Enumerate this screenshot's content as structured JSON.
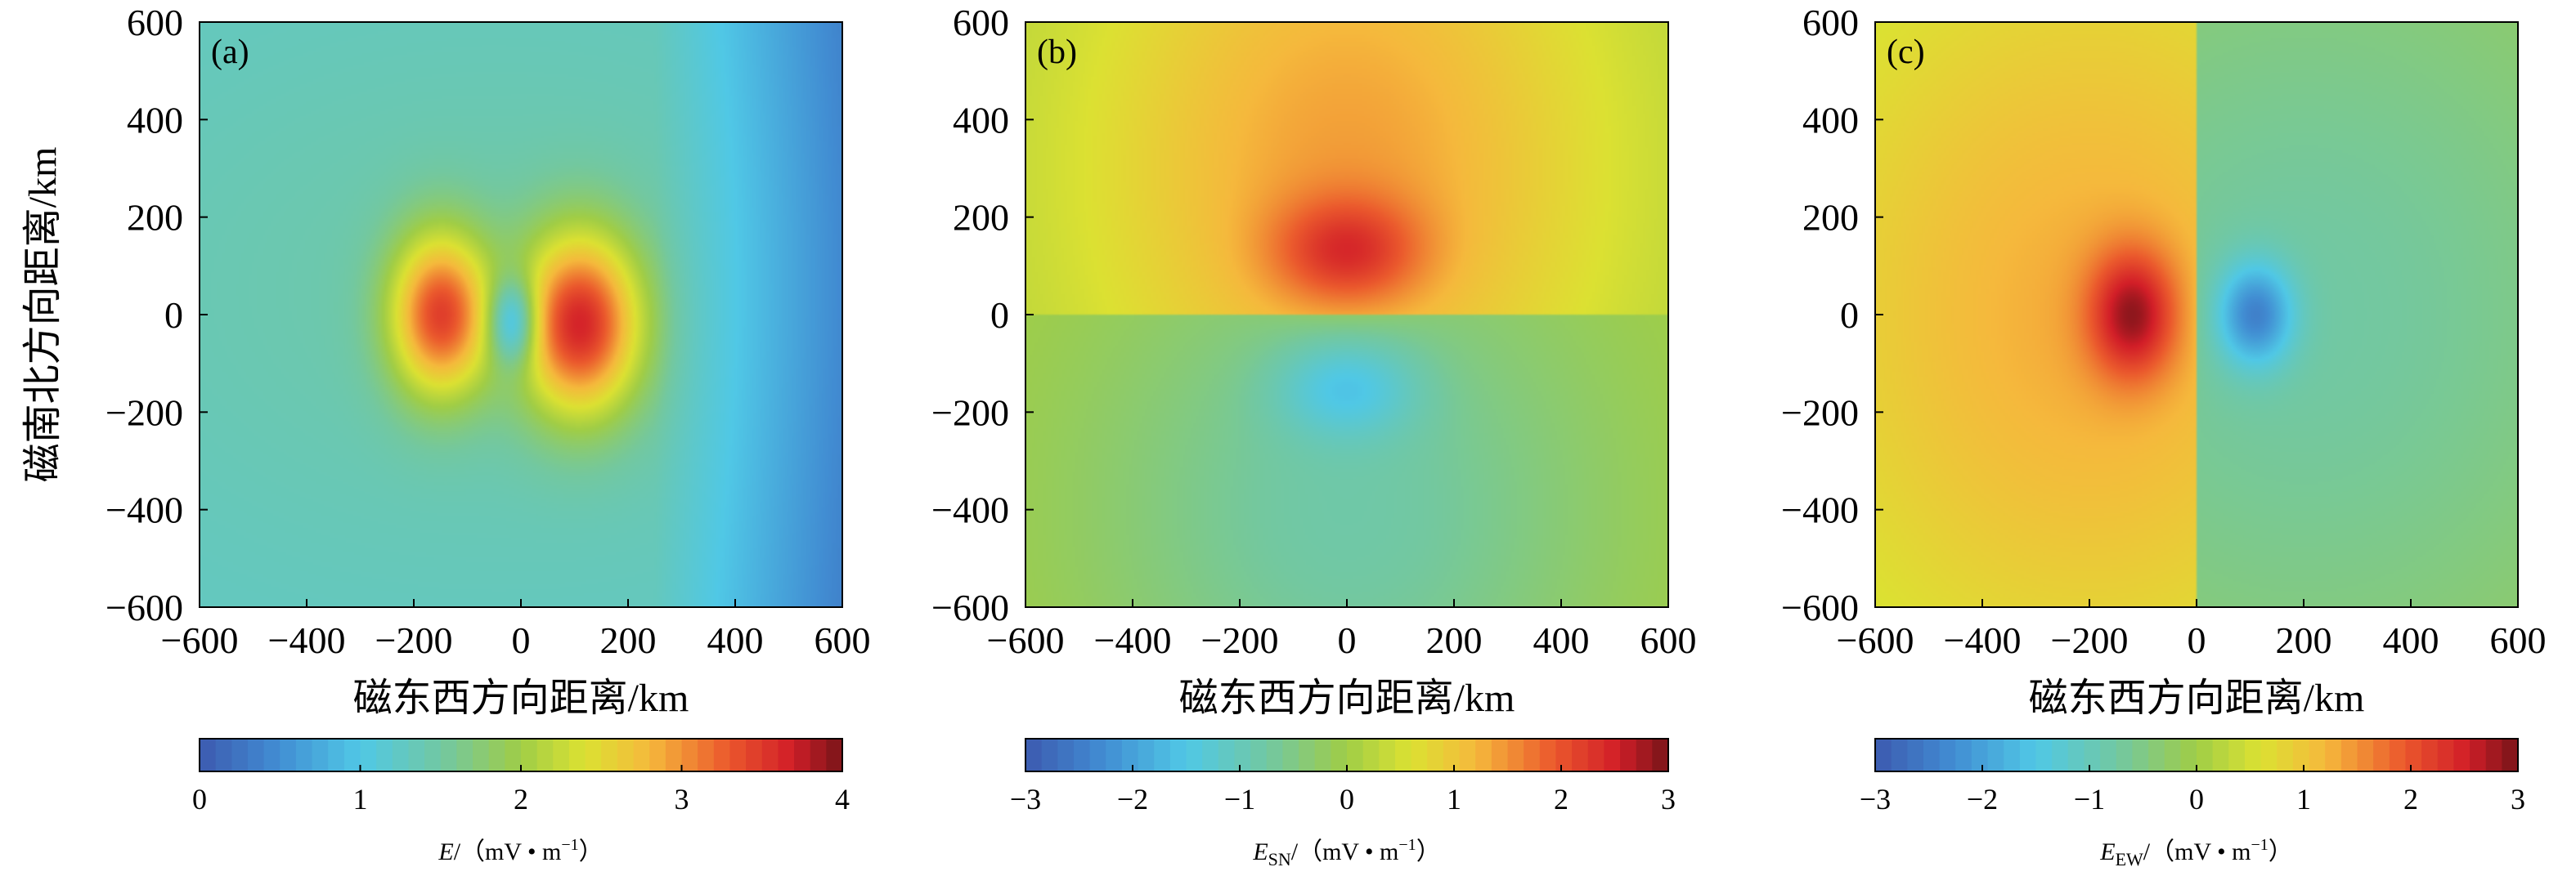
{
  "chart_data": [
    {
      "type": "heatmap",
      "panel_label": "(a)",
      "xlabel": "磁东西方向距离/km",
      "ylabel": "磁南北方向距离/km",
      "xlim": [
        -600,
        600
      ],
      "ylim": [
        -600,
        600
      ],
      "xticks": [
        "−600",
        "−400",
        "−200",
        "0",
        "200",
        "400",
        "600"
      ],
      "yticks": [
        "600",
        "400",
        "200",
        "0",
        "−200",
        "−400",
        "−600"
      ],
      "field": "magnitude",
      "features": [
        {
          "x": -150,
          "y": 0,
          "value": 3.3
        },
        {
          "x": 110,
          "y": -20,
          "value": 3.6
        },
        {
          "x": -20,
          "y": -20,
          "value": 0.6
        }
      ],
      "colorbar": {
        "range": [
          0,
          4
        ],
        "ticks": [
          "0",
          "1",
          "2",
          "3",
          "4"
        ],
        "label_main": "E",
        "label_sub": "",
        "label_unit_pre": "/（mV • m",
        "label_sup": "−1",
        "label_unit_post": "）"
      }
    },
    {
      "type": "heatmap",
      "panel_label": "(b)",
      "xlabel": "磁东西方向距离/km",
      "ylabel": "",
      "xlim": [
        -600,
        600
      ],
      "ylim": [
        -600,
        600
      ],
      "xticks": [
        "−600",
        "−400",
        "−200",
        "0",
        "200",
        "400",
        "600"
      ],
      "yticks": [
        "600",
        "400",
        "200",
        "0",
        "−200",
        "−400",
        "−600"
      ],
      "field": "sn",
      "features": [
        {
          "x": 0,
          "y": 130,
          "value": 2.2
        },
        {
          "x": 0,
          "y": -140,
          "value": -1.3
        }
      ],
      "colorbar": {
        "range": [
          -3,
          3
        ],
        "ticks": [
          "−3",
          "−2",
          "−1",
          "0",
          "1",
          "2",
          "3"
        ],
        "label_main": "E",
        "label_sub": "SN",
        "label_unit_pre": "/（mV • m",
        "label_sup": "−1",
        "label_unit_post": "）"
      }
    },
    {
      "type": "heatmap",
      "panel_label": "(c)",
      "xlabel": "磁东西方向距离/km",
      "ylabel": "",
      "xlim": [
        -600,
        600
      ],
      "ylim": [
        -600,
        600
      ],
      "xticks": [
        "−600",
        "−400",
        "−200",
        "0",
        "200",
        "400",
        "600"
      ],
      "yticks": [
        "600",
        "400",
        "200",
        "0",
        "−200",
        "−400",
        "−600"
      ],
      "field": "ew",
      "features": [
        {
          "x": -120,
          "y": 0,
          "value": 2.8
        },
        {
          "x": 110,
          "y": 0,
          "value": -2.4
        }
      ],
      "colorbar": {
        "range": [
          -3,
          3
        ],
        "ticks": [
          "−3",
          "−2",
          "−1",
          "0",
          "1",
          "2",
          "3"
        ],
        "label_main": "E",
        "label_sub": "EW",
        "label_unit_pre": "/（mV • m",
        "label_sup": "−1",
        "label_unit_post": "）"
      }
    }
  ]
}
